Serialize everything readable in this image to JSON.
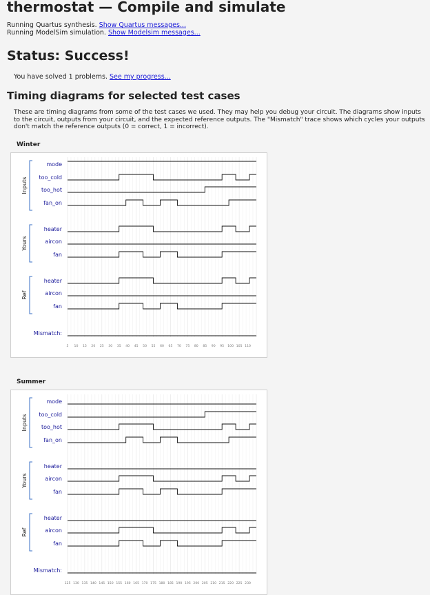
{
  "header": {
    "title": "thermostat — Compile and simulate",
    "quartus_text": "Running Quartus synthesis.",
    "quartus_link": "Show Quartus messages...",
    "modelsim_text": "Running ModelSim simulation.",
    "modelsim_link": "Show Modelsim messages..."
  },
  "status": {
    "title": "Status: Success!",
    "solved_text": "You have solved 1 problems.",
    "progress_link": "See my progress..."
  },
  "timing": {
    "heading": "Timing diagrams for selected test cases",
    "description": "These are timing diagrams from some of the test cases we used. They may help you debug your circuit. The diagrams show inputs to the circuit, outputs from your circuit, and the expected reference outputs. The \"Mismatch\" trace shows which cycles your outputs don't match the reference outputs (0 = correct, 1 = incorrect).",
    "group_labels": [
      "Inputs",
      "Yours",
      "Ref"
    ],
    "mismatch_label": "Mismatch:",
    "cases": [
      {
        "name": "Winter",
        "ticks": [
          "5",
          "10",
          "15",
          "20",
          "25",
          "30",
          "35",
          "40",
          "45",
          "50",
          "55",
          "60",
          "65",
          "70",
          "75",
          "80",
          "85",
          "90",
          "95",
          "100",
          "105",
          "110"
        ],
        "signals": [
          {
            "group": "Inputs",
            "name": "mode",
            "wave": [
              [
                0,
                1
              ],
              [
                55,
                1
              ]
            ]
          },
          {
            "group": "Inputs",
            "name": "too_cold",
            "wave": [
              [
                0,
                0
              ],
              [
                15,
                1
              ],
              [
                25,
                0
              ],
              [
                45,
                1
              ],
              [
                49,
                0
              ],
              [
                53,
                1
              ],
              [
                55,
                1
              ]
            ]
          },
          {
            "group": "Inputs",
            "name": "too_hot",
            "wave": [
              [
                0,
                0
              ],
              [
                40,
                1
              ],
              [
                55,
                1
              ]
            ]
          },
          {
            "group": "Inputs",
            "name": "fan_on",
            "wave": [
              [
                0,
                0
              ],
              [
                17,
                1
              ],
              [
                22,
                0
              ],
              [
                27,
                1
              ],
              [
                32,
                0
              ],
              [
                47,
                1
              ],
              [
                55,
                1
              ]
            ]
          },
          {
            "group": "Yours",
            "name": "heater",
            "wave": [
              [
                0,
                0
              ],
              [
                15,
                1
              ],
              [
                25,
                0
              ],
              [
                45,
                1
              ],
              [
                49,
                0
              ],
              [
                53,
                1
              ],
              [
                55,
                1
              ]
            ]
          },
          {
            "group": "Yours",
            "name": "aircon",
            "wave": [
              [
                0,
                0
              ],
              [
                55,
                0
              ]
            ]
          },
          {
            "group": "Yours",
            "name": "fan",
            "wave": [
              [
                0,
                0
              ],
              [
                15,
                1
              ],
              [
                22,
                0
              ],
              [
                27,
                1
              ],
              [
                32,
                0
              ],
              [
                45,
                1
              ],
              [
                55,
                1
              ]
            ]
          },
          {
            "group": "Ref",
            "name": "heater",
            "wave": [
              [
                0,
                0
              ],
              [
                15,
                1
              ],
              [
                25,
                0
              ],
              [
                45,
                1
              ],
              [
                49,
                0
              ],
              [
                53,
                1
              ],
              [
                55,
                1
              ]
            ]
          },
          {
            "group": "Ref",
            "name": "aircon",
            "wave": [
              [
                0,
                0
              ],
              [
                55,
                0
              ]
            ]
          },
          {
            "group": "Ref",
            "name": "fan",
            "wave": [
              [
                0,
                0
              ],
              [
                15,
                1
              ],
              [
                22,
                0
              ],
              [
                27,
                1
              ],
              [
                32,
                0
              ],
              [
                45,
                1
              ],
              [
                55,
                1
              ]
            ]
          }
        ],
        "mismatch": [
          [
            0,
            0
          ],
          [
            55,
            0
          ]
        ]
      },
      {
        "name": "Summer",
        "ticks": [
          "125",
          "130",
          "135",
          "140",
          "145",
          "150",
          "155",
          "160",
          "165",
          "170",
          "175",
          "180",
          "185",
          "190",
          "195",
          "200",
          "205",
          "210",
          "215",
          "220",
          "225",
          "230"
        ],
        "signals": [
          {
            "group": "Inputs",
            "name": "mode",
            "wave": [
              [
                0,
                0
              ],
              [
                55,
                0
              ]
            ]
          },
          {
            "group": "Inputs",
            "name": "too_cold",
            "wave": [
              [
                0,
                0
              ],
              [
                40,
                1
              ],
              [
                55,
                1
              ]
            ]
          },
          {
            "group": "Inputs",
            "name": "too_hot",
            "wave": [
              [
                0,
                0
              ],
              [
                15,
                1
              ],
              [
                25,
                0
              ],
              [
                45,
                1
              ],
              [
                49,
                0
              ],
              [
                53,
                1
              ],
              [
                55,
                1
              ]
            ]
          },
          {
            "group": "Inputs",
            "name": "fan_on",
            "wave": [
              [
                0,
                0
              ],
              [
                17,
                1
              ],
              [
                22,
                0
              ],
              [
                27,
                1
              ],
              [
                32,
                0
              ],
              [
                47,
                1
              ],
              [
                55,
                1
              ]
            ]
          },
          {
            "group": "Yours",
            "name": "heater",
            "wave": [
              [
                0,
                0
              ],
              [
                55,
                0
              ]
            ]
          },
          {
            "group": "Yours",
            "name": "aircon",
            "wave": [
              [
                0,
                0
              ],
              [
                15,
                1
              ],
              [
                25,
                0
              ],
              [
                45,
                1
              ],
              [
                49,
                0
              ],
              [
                53,
                1
              ],
              [
                55,
                1
              ]
            ]
          },
          {
            "group": "Yours",
            "name": "fan",
            "wave": [
              [
                0,
                0
              ],
              [
                15,
                1
              ],
              [
                22,
                0
              ],
              [
                27,
                1
              ],
              [
                32,
                0
              ],
              [
                45,
                1
              ],
              [
                55,
                1
              ]
            ]
          },
          {
            "group": "Ref",
            "name": "heater",
            "wave": [
              [
                0,
                0
              ],
              [
                55,
                0
              ]
            ]
          },
          {
            "group": "Ref",
            "name": "aircon",
            "wave": [
              [
                0,
                0
              ],
              [
                15,
                1
              ],
              [
                25,
                0
              ],
              [
                45,
                1
              ],
              [
                49,
                0
              ],
              [
                53,
                1
              ],
              [
                55,
                1
              ]
            ]
          },
          {
            "group": "Ref",
            "name": "fan",
            "wave": [
              [
                0,
                0
              ],
              [
                15,
                1
              ],
              [
                22,
                0
              ],
              [
                27,
                1
              ],
              [
                32,
                0
              ],
              [
                45,
                1
              ],
              [
                55,
                1
              ]
            ]
          }
        ],
        "mismatch": [
          [
            0,
            0
          ],
          [
            55,
            0
          ]
        ]
      }
    ]
  }
}
